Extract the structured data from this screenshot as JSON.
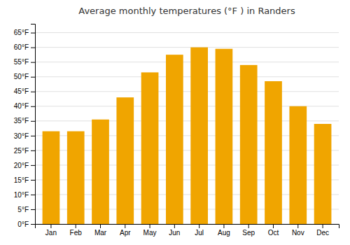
{
  "chart_data": {
    "type": "bar",
    "title": "Average monthly temperatures (°F ) in Randers",
    "categories": [
      "Jan",
      "Feb",
      "Mar",
      "Apr",
      "May",
      "Jun",
      "Jul",
      "Aug",
      "Sep",
      "Oct",
      "Nov",
      "Dec"
    ],
    "values": [
      31.5,
      31.5,
      35.5,
      43.0,
      51.5,
      57.5,
      60.0,
      59.5,
      54.0,
      48.5,
      40.0,
      34.0
    ],
    "color": "#F0A500",
    "ylim": [
      0,
      68
    ],
    "yticks": [
      {
        "value": 0,
        "label": "0°F"
      },
      {
        "value": 5,
        "label": "5°F"
      },
      {
        "value": 10,
        "label": "10°F"
      },
      {
        "value": 15,
        "label": "15°F"
      },
      {
        "value": 20,
        "label": "20°F"
      },
      {
        "value": 25,
        "label": "25°F"
      },
      {
        "value": 30,
        "label": "30°F"
      },
      {
        "value": 35,
        "label": "35°F"
      },
      {
        "value": 40,
        "label": "40°F"
      },
      {
        "value": 45,
        "label": "45°F"
      },
      {
        "value": 50,
        "label": "50°F"
      },
      {
        "value": 55,
        "label": "55°F"
      },
      {
        "value": 60,
        "label": "60°F"
      },
      {
        "value": 65,
        "label": "65°F"
      }
    ],
    "grid": true
  }
}
